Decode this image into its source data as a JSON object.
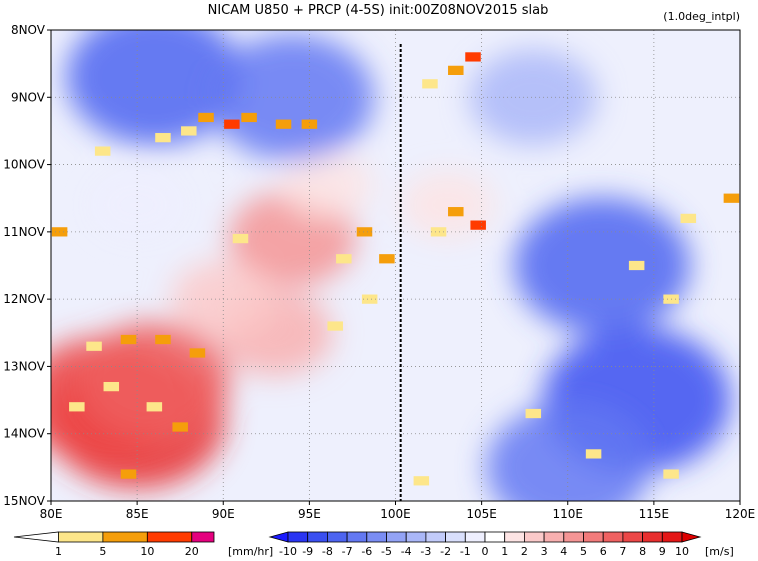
{
  "chart_data": {
    "type": "heatmap",
    "title": "NICAM  U850 + PRCP (4-5S) init:00Z08NOV2015 slab",
    "note": "(1.0deg_intpl)",
    "x_ticks": [
      "80E",
      "85E",
      "90E",
      "95E",
      "100E",
      "105E",
      "110E",
      "115E",
      "120E"
    ],
    "x_values": [
      80,
      85,
      90,
      95,
      100,
      105,
      110,
      115,
      120
    ],
    "y_ticks": [
      "8NOV",
      "9NOV",
      "10NOV",
      "11NOV",
      "12NOV",
      "13NOV",
      "14NOV",
      "15NOV"
    ],
    "y_values": [
      8,
      9,
      10,
      11,
      12,
      13,
      14,
      15
    ],
    "xlim": [
      80,
      120
    ],
    "ylim": [
      8,
      15
    ],
    "grid": true,
    "reference_line_x": 100.3,
    "u850_field": {
      "units": "[m/s]",
      "levels": [
        -10,
        -9,
        -8,
        -7,
        -6,
        -5,
        -4,
        -3,
        -2,
        -1,
        0,
        1,
        2,
        3,
        4,
        5,
        6,
        7,
        8,
        9,
        10
      ],
      "level_labels": [
        "-10",
        "-9",
        "-8",
        "-7",
        "-6",
        "-5",
        "-4",
        "-3",
        "-2",
        "-1",
        "0",
        "1",
        "2",
        "3",
        "4",
        "5",
        "6",
        "7",
        "8",
        "9",
        "10"
      ],
      "colors": [
        "#1a1aff",
        "#2a35f2",
        "#3a4ff0",
        "#4d64f0",
        "#6378f2",
        "#7a8df4",
        "#93a3f6",
        "#aab7f8",
        "#c2cbfa",
        "#d9dffc",
        "#eeeffe",
        "#ffffff",
        "#fde4e4",
        "#fbcaca",
        "#f8b0b0",
        "#f59595",
        "#f27b7b",
        "#ef6161",
        "#ec4747",
        "#e82e2e",
        "#e41616",
        "#dd0000"
      ],
      "regions": [
        {
          "lon": 85,
          "day": 13.8,
          "value": 8
        },
        {
          "lon": 83,
          "day": 13.5,
          "value": 7
        },
        {
          "lon": 86,
          "day": 13.2,
          "value": 6
        },
        {
          "lon": 94,
          "day": 11.1,
          "value": 4
        },
        {
          "lon": 93,
          "day": 12.5,
          "value": 3
        },
        {
          "lon": 90,
          "day": 12.0,
          "value": 2
        },
        {
          "lon": 103,
          "day": 10.6,
          "value": 1
        },
        {
          "lon": 96,
          "day": 10.3,
          "value": 1
        },
        {
          "lon": 85,
          "day": 10.6,
          "value": -1
        },
        {
          "lon": 86,
          "day": 8.7,
          "value": -8
        },
        {
          "lon": 94,
          "day": 9.0,
          "value": -7
        },
        {
          "lon": 112,
          "day": 11.5,
          "value": -8
        },
        {
          "lon": 114,
          "day": 13.5,
          "value": -9
        },
        {
          "lon": 108,
          "day": 9.0,
          "value": -4
        },
        {
          "lon": 110,
          "day": 14.5,
          "value": -7
        }
      ]
    },
    "precip_field": {
      "units": "[mm/hr]",
      "levels": [
        1,
        5,
        10,
        20
      ],
      "level_labels": [
        "1",
        "5",
        "10",
        "20"
      ],
      "colors": [
        "#ffffff",
        "#fde68a",
        "#f59e0b",
        "#ff3b00",
        "#e5007e"
      ],
      "cells": [
        {
          "lon": 104.5,
          "day": 8.4,
          "value": 12
        },
        {
          "lon": 103.5,
          "day": 8.6,
          "value": 6
        },
        {
          "lon": 102.0,
          "day": 8.8,
          "value": 3
        },
        {
          "lon": 89.0,
          "day": 9.3,
          "value": 8
        },
        {
          "lon": 90.5,
          "day": 9.4,
          "value": 12
        },
        {
          "lon": 91.5,
          "day": 9.3,
          "value": 6
        },
        {
          "lon": 93.5,
          "day": 9.4,
          "value": 6
        },
        {
          "lon": 95.0,
          "day": 9.4,
          "value": 8
        },
        {
          "lon": 86.5,
          "day": 9.6,
          "value": 3
        },
        {
          "lon": 88.0,
          "day": 9.5,
          "value": 3
        },
        {
          "lon": 83.0,
          "day": 9.8,
          "value": 3
        },
        {
          "lon": 104.8,
          "day": 10.9,
          "value": 12
        },
        {
          "lon": 103.5,
          "day": 10.7,
          "value": 6
        },
        {
          "lon": 102.5,
          "day": 11.0,
          "value": 3
        },
        {
          "lon": 80.5,
          "day": 11.0,
          "value": 6
        },
        {
          "lon": 91.0,
          "day": 11.1,
          "value": 3
        },
        {
          "lon": 98.2,
          "day": 11.0,
          "value": 8
        },
        {
          "lon": 97.0,
          "day": 11.4,
          "value": 3
        },
        {
          "lon": 99.5,
          "day": 11.4,
          "value": 6
        },
        {
          "lon": 98.5,
          "day": 12.0,
          "value": 3
        },
        {
          "lon": 84.5,
          "day": 12.6,
          "value": 8
        },
        {
          "lon": 86.5,
          "day": 12.6,
          "value": 8
        },
        {
          "lon": 82.5,
          "day": 12.7,
          "value": 3
        },
        {
          "lon": 88.5,
          "day": 12.8,
          "value": 6
        },
        {
          "lon": 83.5,
          "day": 13.3,
          "value": 3
        },
        {
          "lon": 86.0,
          "day": 13.6,
          "value": 3
        },
        {
          "lon": 87.5,
          "day": 13.9,
          "value": 6
        },
        {
          "lon": 81.5,
          "day": 13.6,
          "value": 3
        },
        {
          "lon": 84.5,
          "day": 14.6,
          "value": 6
        },
        {
          "lon": 108.0,
          "day": 13.7,
          "value": 3
        },
        {
          "lon": 111.5,
          "day": 14.3,
          "value": 3
        },
        {
          "lon": 116.0,
          "day": 12.0,
          "value": 3
        },
        {
          "lon": 116.0,
          "day": 14.6,
          "value": 3
        },
        {
          "lon": 119.5,
          "day": 10.5,
          "value": 6
        },
        {
          "lon": 117.0,
          "day": 10.8,
          "value": 3
        },
        {
          "lon": 114.0,
          "day": 11.5,
          "value": 3
        },
        {
          "lon": 101.5,
          "day": 14.7,
          "value": 3
        },
        {
          "lon": 96.5,
          "day": 12.4,
          "value": 3
        }
      ]
    }
  }
}
